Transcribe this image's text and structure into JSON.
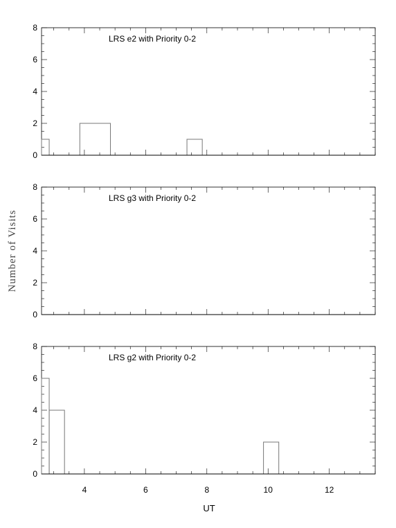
{
  "chart_data": {
    "type": "bar",
    "xlabel": "UT",
    "ylabel": "Number of Visits",
    "xlim": [
      2.6,
      13.5
    ],
    "x_ticks": [
      "4",
      "6",
      "8",
      "10",
      "12"
    ],
    "y_ticks": [
      "0",
      "2",
      "4",
      "6",
      "8"
    ],
    "bin_width": 0.5,
    "panels": [
      {
        "title": "LRS e2 with Priority 0-2",
        "ylim": [
          0,
          8
        ],
        "bins": [
          {
            "x0": 2.6,
            "x1": 2.85,
            "value": 1
          },
          {
            "x0": 3.85,
            "x1": 4.85,
            "value": 2
          },
          {
            "x0": 7.35,
            "x1": 7.85,
            "value": 1
          }
        ]
      },
      {
        "title": "LRS g3 with Priority 0-2",
        "ylim": [
          0,
          8
        ],
        "bins": []
      },
      {
        "title": "LRS g2 with Priority 0-2",
        "ylim": [
          0,
          8
        ],
        "bins": [
          {
            "x0": 2.6,
            "x1": 2.85,
            "value": 6
          },
          {
            "x0": 2.85,
            "x1": 3.35,
            "value": 4
          },
          {
            "x0": 9.85,
            "x1": 10.35,
            "value": 2
          }
        ]
      }
    ]
  }
}
